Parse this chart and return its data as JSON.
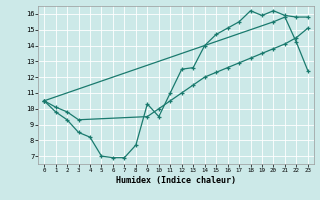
{
  "xlabel": "Humidex (Indice chaleur)",
  "xlim": [
    -0.5,
    23.5
  ],
  "ylim": [
    6.5,
    16.5
  ],
  "xticks": [
    0,
    1,
    2,
    3,
    4,
    5,
    6,
    7,
    8,
    9,
    10,
    11,
    12,
    13,
    14,
    15,
    16,
    17,
    18,
    19,
    20,
    21,
    22,
    23
  ],
  "yticks": [
    7,
    8,
    9,
    10,
    11,
    12,
    13,
    14,
    15,
    16
  ],
  "bg_color": "#cce9e8",
  "grid_color": "#ffffff",
  "line_color": "#1a7a6e",
  "line1_x": [
    0,
    1,
    2,
    3,
    4,
    5,
    6,
    7,
    8,
    9,
    10,
    11,
    12,
    13,
    14,
    15,
    16,
    17,
    18,
    19,
    20,
    21,
    22,
    23
  ],
  "line1_y": [
    10.5,
    9.8,
    9.3,
    8.5,
    8.2,
    7.0,
    6.9,
    6.9,
    7.7,
    10.3,
    9.5,
    11.0,
    12.5,
    12.6,
    14.0,
    14.7,
    15.1,
    15.5,
    16.2,
    15.9,
    16.2,
    15.9,
    15.8,
    15.8
  ],
  "line2_x": [
    0,
    1,
    2,
    3,
    9,
    10,
    11,
    12,
    13,
    14,
    15,
    16,
    17,
    18,
    19,
    20,
    21,
    22,
    23
  ],
  "line2_y": [
    10.5,
    10.1,
    9.8,
    9.3,
    9.5,
    10.0,
    10.5,
    11.0,
    11.5,
    12.0,
    12.3,
    12.6,
    12.9,
    13.2,
    13.5,
    13.8,
    14.1,
    14.5,
    15.1
  ],
  "line3_x": [
    0,
    20,
    21,
    22,
    23
  ],
  "line3_y": [
    10.5,
    15.5,
    15.8,
    14.2,
    12.4
  ]
}
